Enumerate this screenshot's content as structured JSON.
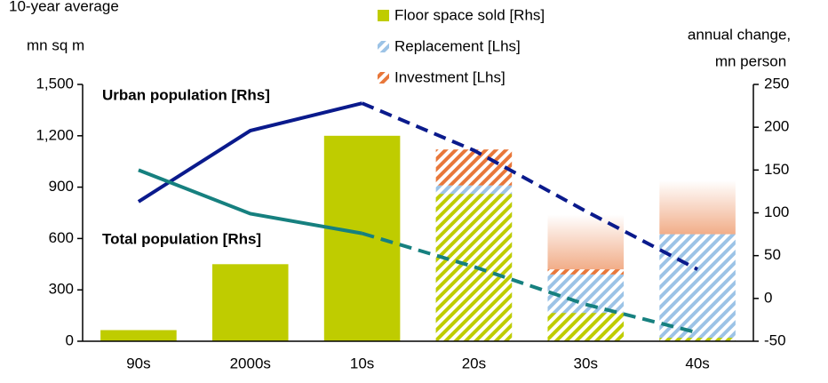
{
  "chart_data": {
    "type": "bar",
    "subtitle": "10-year average",
    "y_label": "mn sq m",
    "y2_label": [
      "annual change,",
      "mn person"
    ],
    "categories": [
      "90s",
      "2000s",
      "10s",
      "20s",
      "30s",
      "40s"
    ],
    "forecast_from": "20s",
    "ylim": [
      0,
      1500
    ],
    "yticks": [
      0,
      300,
      600,
      900,
      {
        "value": 1200,
        "label": "1,200"
      },
      {
        "value": 1500,
        "label": "1,500"
      }
    ],
    "y2lim": [
      -50,
      250
    ],
    "y2ticks": [
      -50,
      0,
      50,
      100,
      150,
      200,
      250
    ],
    "series": [
      {
        "name": "Floor space sold [Rhs]",
        "type": "bar",
        "color": "#bfcc00",
        "values": [
          65,
          450,
          1200,
          860,
          165,
          20
        ]
      },
      {
        "name": "Replacement [Lhs]",
        "type": "stack",
        "color": "#9cc3e6",
        "values": [
          null,
          null,
          null,
          910,
          390,
          625
        ]
      },
      {
        "name": "Investment [Lhs]",
        "type": "stack",
        "color": "#e8773a",
        "values": [
          null,
          null,
          null,
          210,
          30,
          0
        ],
        "range": [
          null,
          null,
          null,
          null,
          320,
          315
        ]
      },
      {
        "name": "Urban population [Rhs]",
        "type": "line",
        "axis": "y2",
        "color": "#0a1a8c",
        "values": [
          113,
          196,
          228,
          173,
          102,
          34
        ]
      },
      {
        "name": "Total population [Rhs]",
        "type": "line",
        "axis": "y2",
        "color": "#16807f",
        "values": [
          150,
          99,
          76,
          37,
          -7,
          -40
        ]
      }
    ]
  }
}
